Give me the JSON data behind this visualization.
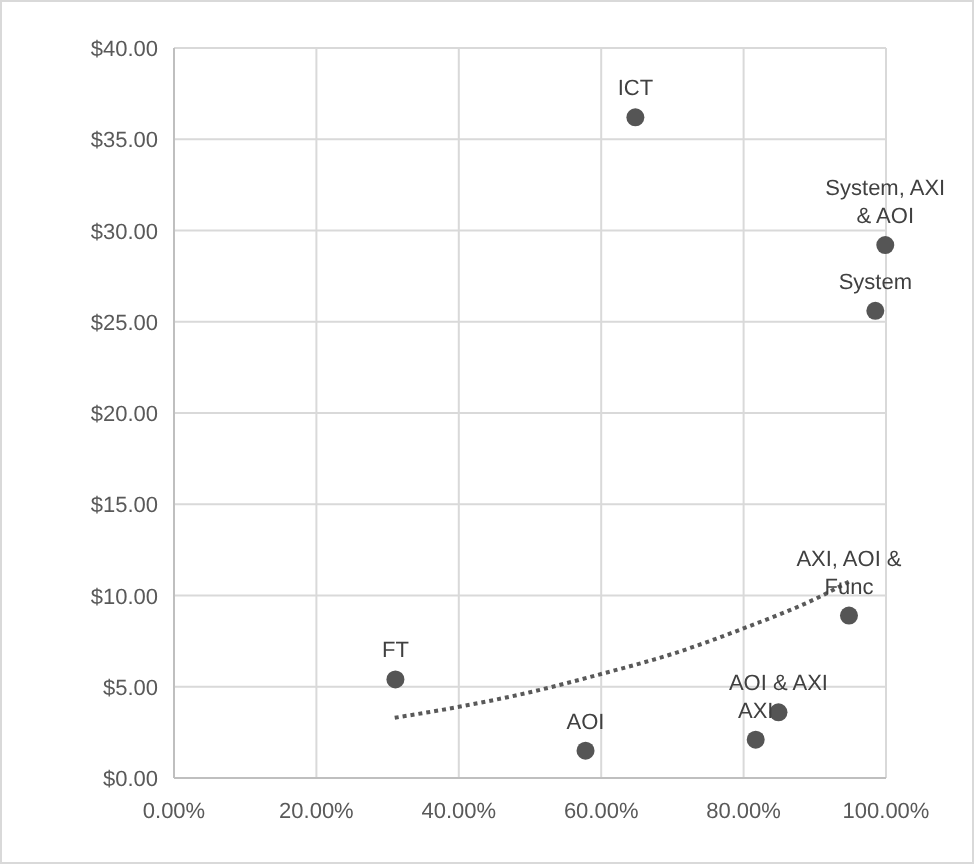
{
  "chart_data": {
    "type": "scatter",
    "x": [
      64.8,
      99.9,
      98.5,
      31.1,
      57.8,
      81.7,
      84.9,
      94.8
    ],
    "series": [
      {
        "color": "#555555",
        "values": [
          36.2,
          29.2,
          25.6,
          5.4,
          1.5,
          2.1,
          3.6,
          8.9
        ]
      },
      {
        "type": "line",
        "color": "#595959",
        "line_style": "dotted",
        "marker": "none",
        "x": [
          31,
          40,
          50,
          60,
          70,
          80,
          90,
          95
        ],
        "values": [
          3.3,
          3.9,
          4.7,
          5.7,
          6.8,
          8.2,
          9.8,
          10.8
        ]
      }
    ],
    "annotations": [
      {
        "text": "ICT",
        "x": 64.8,
        "y": 36.2
      },
      {
        "text": "System, AXI & AOI",
        "x": 99.9,
        "y": 29.2
      },
      {
        "text": "System",
        "x": 98.5,
        "y": 25.6
      },
      {
        "text": "FT",
        "x": 31.1,
        "y": 5.4
      },
      {
        "text": "AOI",
        "x": 57.8,
        "y": 1.5
      },
      {
        "text": "AXI",
        "x": 81.7,
        "y": 2.1
      },
      {
        "text": "AOI & AXI",
        "x": 84.9,
        "y": 3.6
      },
      {
        "text": "AXI, AOI & Func",
        "x": 94.8,
        "y": 8.9
      }
    ],
    "marker": "circle",
    "xlim": [
      0,
      100
    ],
    "ylim": [
      0,
      40
    ],
    "xticks": [
      {
        "value": 0,
        "label": "0.00%"
      },
      {
        "value": 20,
        "label": "20.00%"
      },
      {
        "value": 40,
        "label": "40.00%"
      },
      {
        "value": 60,
        "label": "60.00%"
      },
      {
        "value": 80,
        "label": "80.00%"
      },
      {
        "value": 100,
        "label": "100.00%"
      }
    ],
    "yticks": [
      {
        "value": 0,
        "label": "$0.00"
      },
      {
        "value": 5,
        "label": "$5.00"
      },
      {
        "value": 10,
        "label": "$10.00"
      },
      {
        "value": 15,
        "label": "$15.00"
      },
      {
        "value": 20,
        "label": "$20.00"
      },
      {
        "value": 25,
        "label": "$25.00"
      },
      {
        "value": 30,
        "label": "$30.00"
      },
      {
        "value": 35,
        "label": "$35.00"
      },
      {
        "value": 40,
        "label": "$40.00"
      }
    ],
    "grid": true
  }
}
